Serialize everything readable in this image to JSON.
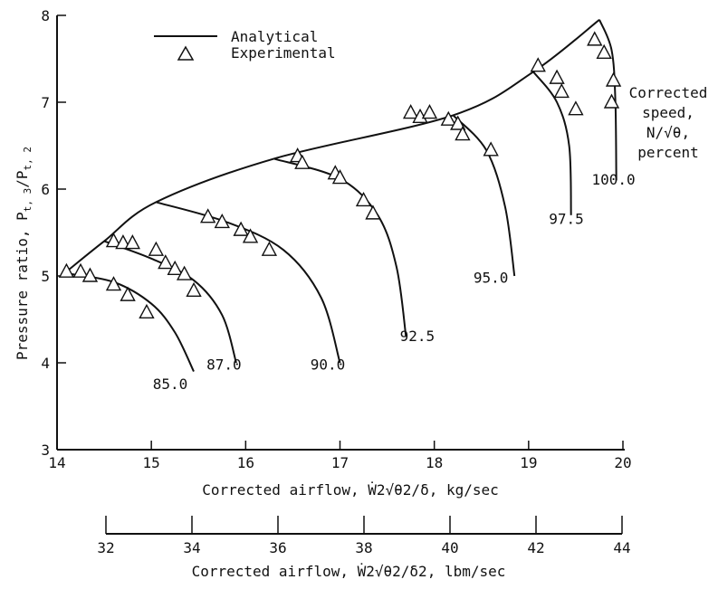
{
  "chart_data": {
    "type": "line",
    "y_axis": {
      "label_main": "Pressure ratio,  P",
      "label_sub1": "t, 3",
      "label_mid": "/P",
      "label_sub2": "t, 2",
      "range": [
        3,
        8
      ],
      "ticks": [
        "3",
        "4",
        "5",
        "6",
        "7",
        "8"
      ]
    },
    "x_axis": {
      "label_pre": "Corrected airflow,  ",
      "label_post": ",  kg/sec",
      "formula": "Ẇ2√θ2/δ",
      "range": [
        14,
        20
      ],
      "ticks": [
        "14",
        "15",
        "16",
        "17",
        "18",
        "19",
        "20"
      ]
    },
    "x_axis_secondary": {
      "label_pre": "Corrected airflow,  ",
      "label_post": ",  lbm/sec",
      "formula": "Ẇ2√θ2/δ2",
      "range": [
        32,
        44
      ],
      "ticks": [
        "32",
        "34",
        "36",
        "38",
        "40",
        "42",
        "44"
      ]
    },
    "legend": [
      {
        "label": "Analytical",
        "symbol": "line"
      },
      {
        "label": "Experimental",
        "symbol": "triangle"
      }
    ],
    "parameter_label": [
      "Corrected",
      "speed,",
      "N/√θ,",
      "percent"
    ],
    "surge_line": [
      [
        14.1,
        5.05
      ],
      [
        14.5,
        5.4
      ],
      [
        15.05,
        5.85
      ],
      [
        16.3,
        6.35
      ],
      [
        18.2,
        6.85
      ],
      [
        19.05,
        7.35
      ],
      [
        19.75,
        7.95
      ]
    ],
    "speed_lines": [
      {
        "name": "85.0",
        "label_at": [
          15.2,
          3.7
        ],
        "points": [
          [
            14.1,
            5.03
          ],
          [
            14.6,
            4.93
          ],
          [
            15.0,
            4.68
          ],
          [
            15.25,
            4.35
          ],
          [
            15.45,
            3.9
          ]
        ]
      },
      {
        "name": "87.0",
        "label_at": [
          15.77,
          3.92
        ],
        "points": [
          [
            14.5,
            5.4
          ],
          [
            15.0,
            5.2
          ],
          [
            15.45,
            4.95
          ],
          [
            15.75,
            4.55
          ],
          [
            15.9,
            4.0
          ]
        ]
      },
      {
        "name": "90.0",
        "label_at": [
          16.87,
          3.92
        ],
        "points": [
          [
            15.05,
            5.85
          ],
          [
            15.8,
            5.62
          ],
          [
            16.4,
            5.3
          ],
          [
            16.8,
            4.75
          ],
          [
            17.0,
            4.0
          ]
        ]
      },
      {
        "name": "92.5",
        "label_at": [
          17.82,
          4.25
        ],
        "points": [
          [
            16.3,
            6.35
          ],
          [
            17.0,
            6.12
          ],
          [
            17.4,
            5.7
          ],
          [
            17.6,
            5.1
          ],
          [
            17.7,
            4.3
          ]
        ]
      },
      {
        "name": "95.0",
        "label_at": [
          18.6,
          4.92
        ],
        "points": [
          [
            18.2,
            6.85
          ],
          [
            18.55,
            6.45
          ],
          [
            18.75,
            5.8
          ],
          [
            18.85,
            5.0
          ]
        ]
      },
      {
        "name": "97.5",
        "label_at": [
          19.4,
          5.6
        ],
        "points": [
          [
            19.05,
            7.35
          ],
          [
            19.3,
            7.0
          ],
          [
            19.43,
            6.5
          ],
          [
            19.45,
            5.7
          ]
        ]
      },
      {
        "name": "100.0",
        "label_at": [
          19.9,
          6.05
        ],
        "points": [
          [
            19.75,
            7.95
          ],
          [
            19.88,
            7.6
          ],
          [
            19.92,
            7.0
          ],
          [
            19.93,
            6.1
          ]
        ]
      }
    ],
    "experimental_points": [
      [
        14.1,
        5.05
      ],
      [
        14.25,
        5.05
      ],
      [
        14.35,
        5.0
      ],
      [
        14.6,
        4.9
      ],
      [
        14.75,
        4.78
      ],
      [
        14.95,
        4.58
      ],
      [
        14.6,
        5.4
      ],
      [
        14.7,
        5.38
      ],
      [
        14.8,
        5.38
      ],
      [
        15.05,
        5.3
      ],
      [
        15.15,
        5.15
      ],
      [
        15.25,
        5.08
      ],
      [
        15.35,
        5.02
      ],
      [
        15.45,
        4.83
      ],
      [
        15.6,
        5.68
      ],
      [
        15.75,
        5.62
      ],
      [
        15.95,
        5.53
      ],
      [
        16.05,
        5.45
      ],
      [
        16.25,
        5.3
      ],
      [
        16.55,
        6.38
      ],
      [
        16.6,
        6.3
      ],
      [
        16.95,
        6.18
      ],
      [
        17.0,
        6.13
      ],
      [
        17.25,
        5.87
      ],
      [
        17.35,
        5.72
      ],
      [
        17.75,
        6.88
      ],
      [
        17.85,
        6.83
      ],
      [
        17.95,
        6.88
      ],
      [
        18.15,
        6.8
      ],
      [
        18.25,
        6.75
      ],
      [
        18.3,
        6.63
      ],
      [
        18.6,
        6.45
      ],
      [
        19.1,
        7.42
      ],
      [
        19.3,
        7.28
      ],
      [
        19.35,
        7.12
      ],
      [
        19.5,
        6.92
      ],
      [
        19.7,
        7.72
      ],
      [
        19.8,
        7.57
      ],
      [
        19.9,
        7.25
      ],
      [
        19.88,
        7.0
      ]
    ]
  }
}
